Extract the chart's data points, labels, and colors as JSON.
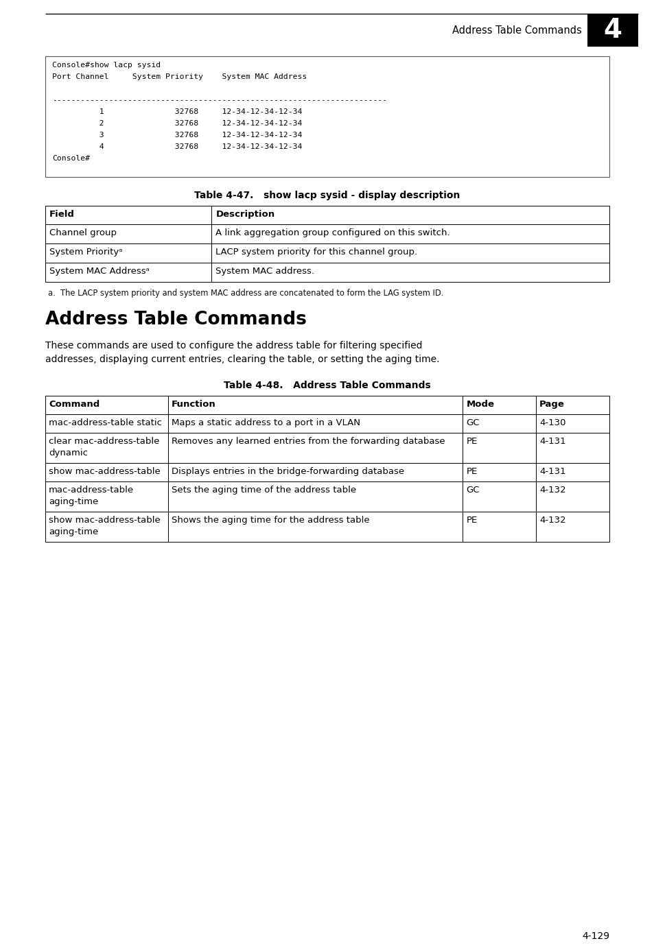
{
  "page_bg": "#ffffff",
  "header_text": "Address Table Commands",
  "header_number": "4",
  "page_number": "4-129",
  "console_lines": [
    "Console#show lacp sysid",
    "Port Channel     System Priority    System MAC Address",
    "",
    "-----------------------------------------------------------------------",
    "          1               32768     12-34-12-34-12-34",
    "          2               32768     12-34-12-34-12-34",
    "          3               32768     12-34-12-34-12-34",
    "          4               32768     12-34-12-34-12-34",
    "Console#"
  ],
  "table47_title": "Table 4-47.   show lacp sysid - display description",
  "table47_col1_header": "Field",
  "table47_col2_header": "Description",
  "table47_rows": [
    [
      "Channel group",
      "A link aggregation group configured on this switch."
    ],
    [
      "System Priorityᵃ",
      "LACP system priority for this channel group."
    ],
    [
      "System MAC Addressᵃ",
      "System MAC address."
    ]
  ],
  "table47_footnote": "a.  The LACP system priority and system MAC address are concatenated to form the LAG system ID.",
  "section_title": "Address Table Commands",
  "section_body_line1": "These commands are used to configure the address table for filtering specified",
  "section_body_line2": "addresses, displaying current entries, clearing the table, or setting the aging time.",
  "table48_title": "Table 4-48.   Address Table Commands",
  "table48_col_headers": [
    "Command",
    "Function",
    "Mode",
    "Page"
  ],
  "table48_rows": [
    [
      "mac-address-table static",
      "Maps a static address to a port in a VLAN",
      "GC",
      "4-130"
    ],
    [
      "clear mac-address-table\ndynamic",
      "Removes any learned entries from the forwarding database",
      "PE",
      "4-131"
    ],
    [
      "show mac-address-table",
      "Displays entries in the bridge-forwarding database",
      "PE",
      "4-131"
    ],
    [
      "mac-address-table\naging-time",
      "Sets the aging time of the address table",
      "GC",
      "4-132"
    ],
    [
      "show mac-address-table\naging-time",
      "Shows the aging time for the address table",
      "PE",
      "4-132"
    ]
  ]
}
